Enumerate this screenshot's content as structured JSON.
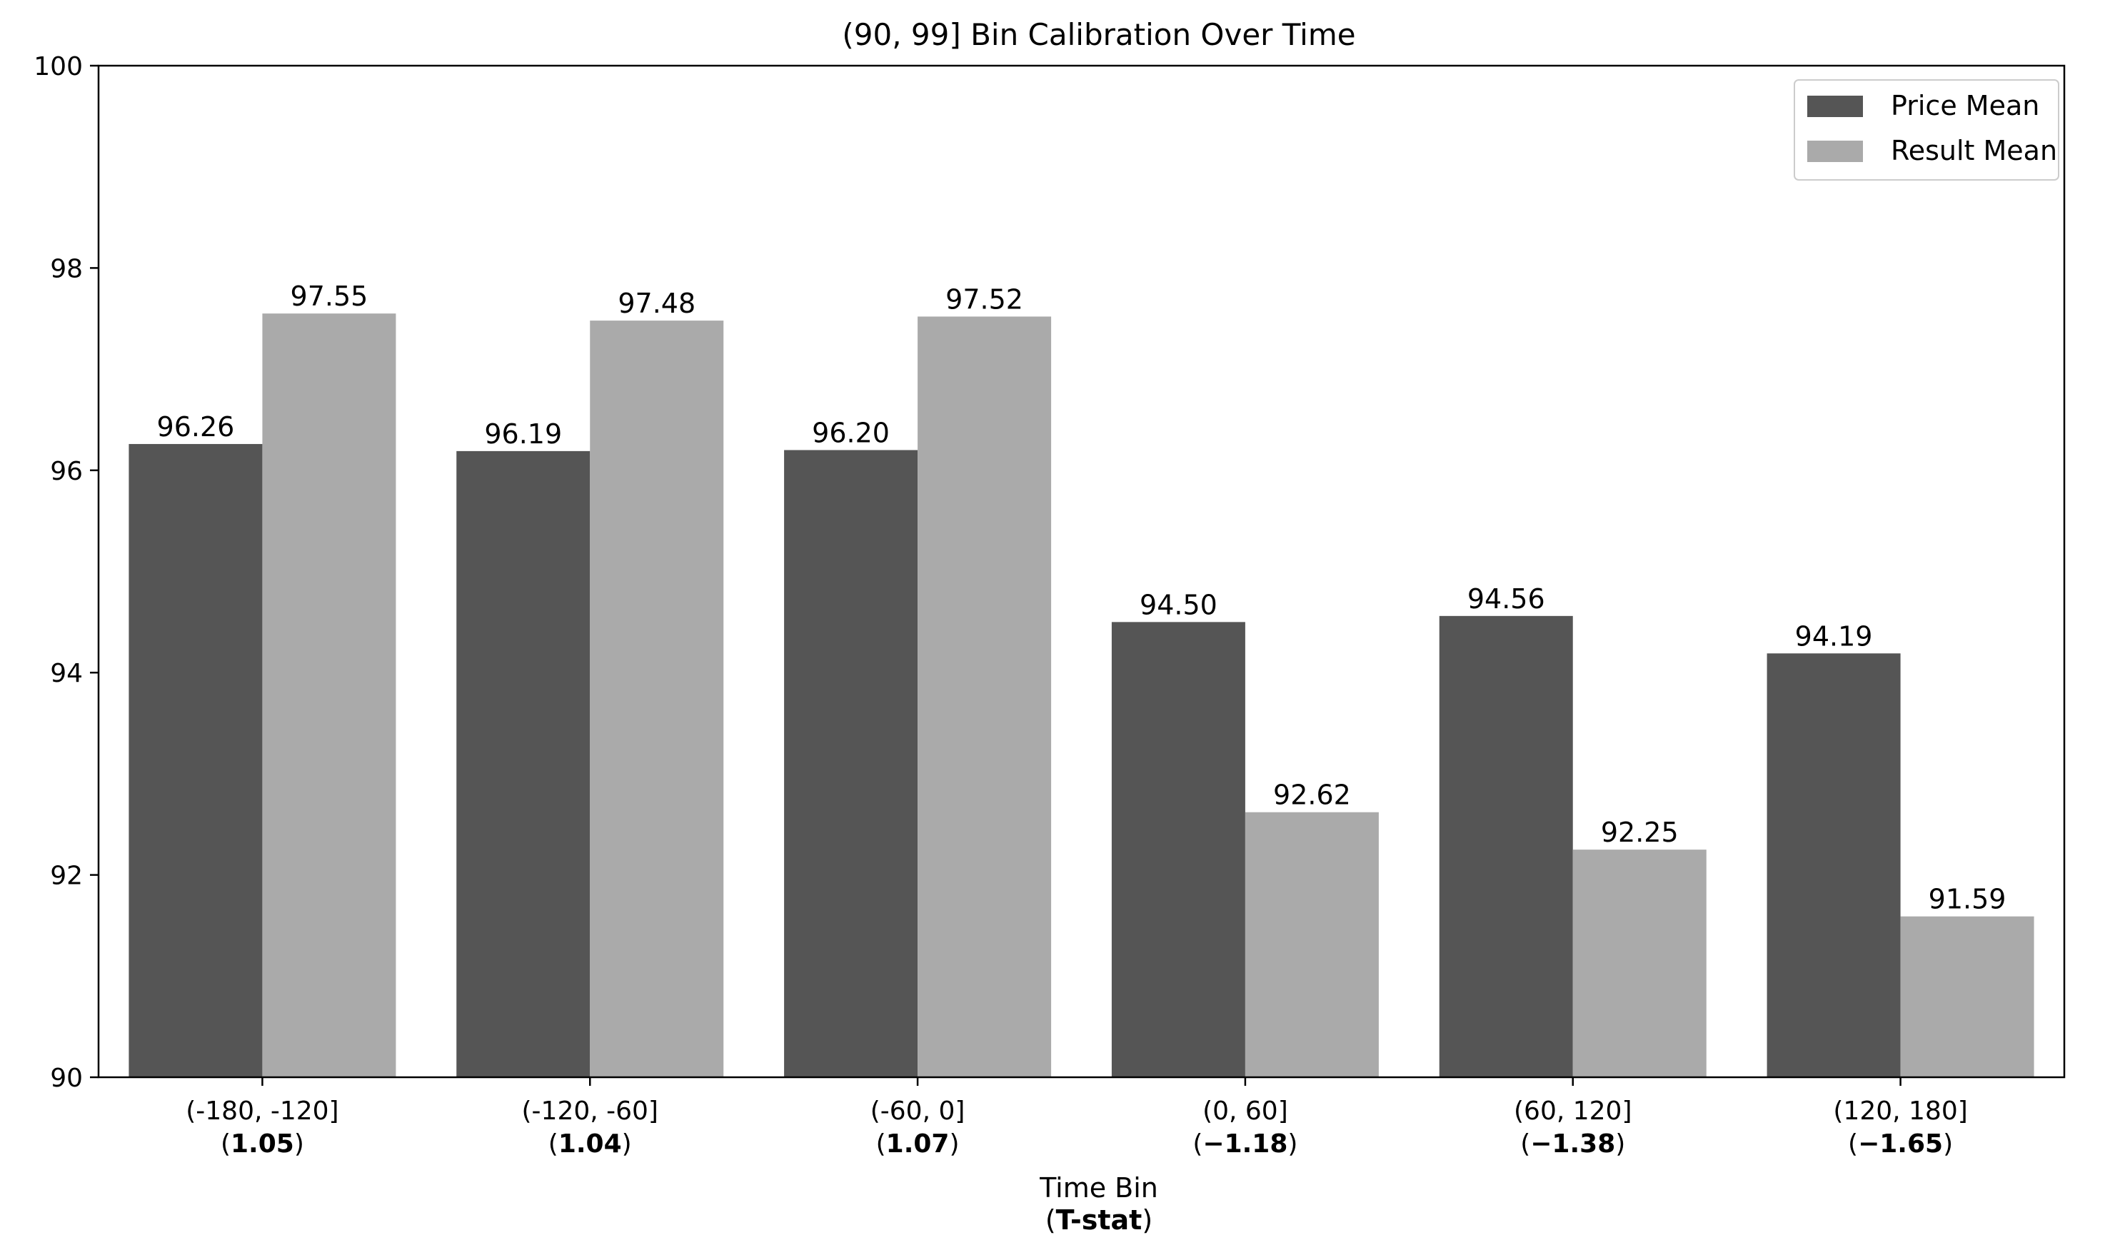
{
  "chart_data": {
    "type": "bar",
    "title": "(90, 99] Bin Calibration Over Time",
    "xlabel": "Time Bin",
    "xlabel_sub_open": "(",
    "xlabel_sub_bold": "T-stat",
    "xlabel_sub_close": ")",
    "categories": [
      "(-180, -120]",
      "(-120, -60]",
      "(-60, 0]",
      "(0, 60]",
      "(60, 120]",
      "(120, 180]"
    ],
    "tstats": [
      "1.05",
      "1.04",
      "1.07",
      "−1.18",
      "−1.38",
      "−1.65"
    ],
    "series": [
      {
        "name": "Price Mean",
        "color": "#555555",
        "values": [
          96.26,
          96.19,
          96.2,
          94.5,
          94.56,
          94.19
        ],
        "labels": [
          "96.26",
          "96.19",
          "96.20",
          "94.50",
          "94.56",
          "94.19"
        ]
      },
      {
        "name": "Result Mean",
        "color": "#aaaaaa",
        "values": [
          97.55,
          97.48,
          97.52,
          92.62,
          92.25,
          91.59
        ],
        "labels": [
          "97.55",
          "97.48",
          "97.52",
          "92.62",
          "92.25",
          "91.59"
        ]
      }
    ],
    "ylim": [
      90,
      100
    ],
    "yticks": [
      "90",
      "92",
      "94",
      "96",
      "98",
      "100"
    ],
    "legend_position": "upper right",
    "grid": false
  }
}
